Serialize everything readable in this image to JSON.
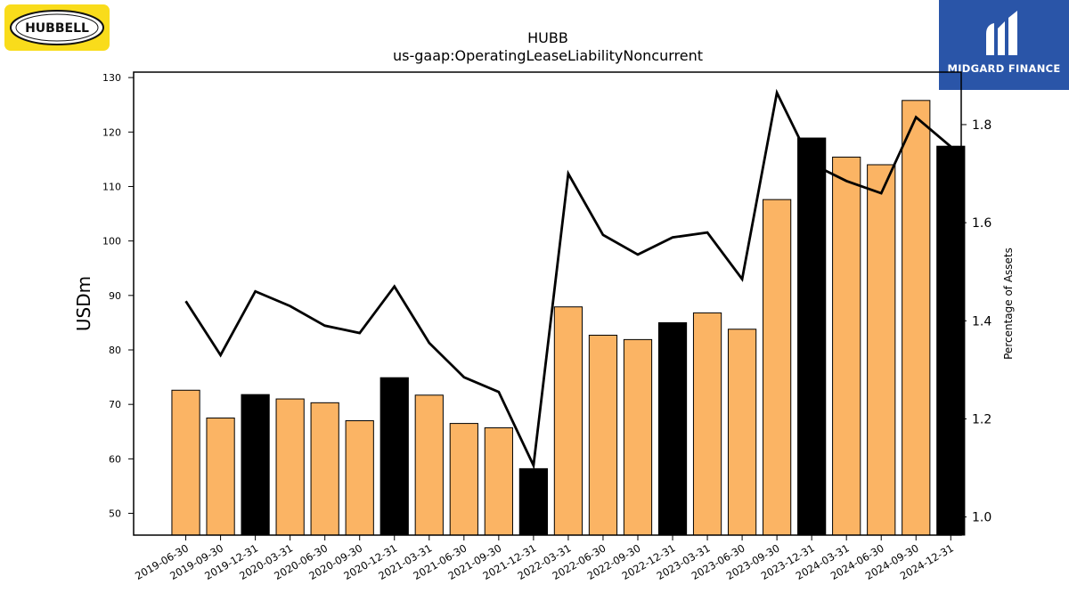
{
  "logos": {
    "left_brand": "HUBBELL",
    "right_brand": "MIDGARD FINANCE"
  },
  "chart_data": {
    "type": "bar",
    "title": "HUBB",
    "subtitle": "us-gaap:OperatingLeaseLiabilityNoncurrent",
    "ylabel": "USDm",
    "y2label": "Percentage of Assets",
    "ylim": [
      46,
      131
    ],
    "y2lim": [
      0.963,
      1.907
    ],
    "yticks": [
      50,
      60,
      70,
      80,
      90,
      100,
      110,
      120,
      130
    ],
    "y2ticks": [
      1.0,
      1.2,
      1.4,
      1.6,
      1.8
    ],
    "categories": [
      "2019-06-30",
      "2019-09-30",
      "2019-12-31",
      "2020-03-31",
      "2020-06-30",
      "2020-09-30",
      "2020-12-31",
      "2021-03-31",
      "2021-06-30",
      "2021-09-30",
      "2021-12-31",
      "2022-03-31",
      "2022-06-30",
      "2022-09-30",
      "2022-12-31",
      "2023-03-31",
      "2023-06-30",
      "2023-09-30",
      "2023-12-31",
      "2024-03-31",
      "2024-06-30",
      "2024-09-30",
      "2024-12-31"
    ],
    "series": [
      {
        "kind": "bar",
        "values": [
          72.6,
          67.5,
          71.8,
          71.0,
          70.3,
          67.0,
          74.9,
          71.7,
          66.5,
          65.7,
          58.2,
          87.9,
          82.7,
          81.9,
          85.0,
          86.8,
          83.8,
          107.6,
          118.9,
          115.4,
          114.0,
          125.8,
          117.4
        ],
        "colors": [
          "#fbb464",
          "#fbb464",
          "#000000",
          "#fbb464",
          "#fbb464",
          "#fbb464",
          "#000000",
          "#fbb464",
          "#fbb464",
          "#fbb464",
          "#000000",
          "#fbb464",
          "#fbb464",
          "#fbb464",
          "#000000",
          "#fbb464",
          "#fbb464",
          "#fbb464",
          "#000000",
          "#fbb464",
          "#fbb464",
          "#fbb464",
          "#000000"
        ]
      },
      {
        "kind": "line",
        "axis": "right",
        "color": "#000000",
        "values": [
          1.44,
          1.33,
          1.46,
          1.43,
          1.39,
          1.375,
          1.47,
          1.355,
          1.285,
          1.255,
          1.105,
          1.7,
          1.575,
          1.535,
          1.57,
          1.58,
          1.485,
          1.865,
          1.72,
          1.685,
          1.66,
          1.815,
          1.755
        ]
      }
    ],
    "colors": {
      "quarter_bar": "#fbb464",
      "year_end_bar": "#000000",
      "line": "#000000"
    },
    "grid": false,
    "legend": "none"
  }
}
